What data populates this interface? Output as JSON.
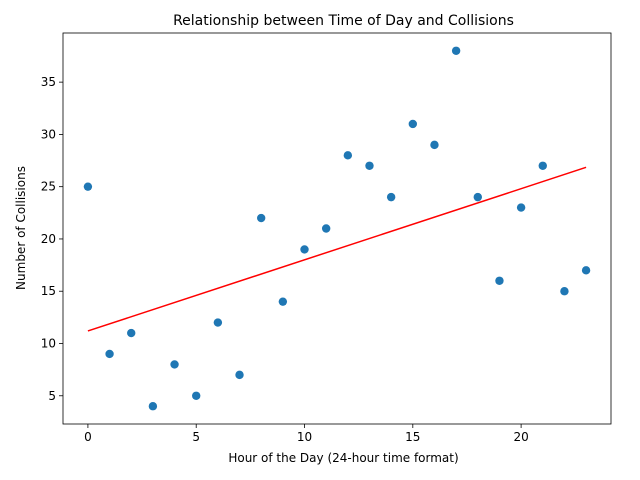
{
  "chart_data": {
    "type": "scatter",
    "title": "Relationship between Time of Day and Collisions",
    "xlabel": "Hour of the Day (24-hour time format)",
    "ylabel": "Number of Collisions",
    "xlim": [
      -1.15,
      24.15
    ],
    "ylim": [
      2.3,
      39.7
    ],
    "xticks": [
      0,
      5,
      10,
      15,
      20
    ],
    "yticks": [
      5,
      10,
      15,
      20,
      25,
      30,
      35
    ],
    "grid": false,
    "x": [
      0,
      1,
      2,
      3,
      4,
      5,
      6,
      7,
      8,
      9,
      10,
      11,
      12,
      13,
      14,
      15,
      16,
      17,
      18,
      19,
      20,
      21,
      22,
      23
    ],
    "y": [
      25,
      9,
      11,
      4,
      8,
      5,
      12,
      7,
      22,
      14,
      19,
      21,
      28,
      27,
      24,
      31,
      29,
      38,
      24,
      16,
      23,
      27,
      15,
      17
    ],
    "point_color": "#1f77b4",
    "trend_line": {
      "x": [
        0,
        23
      ],
      "y": [
        11.2,
        26.85
      ],
      "color": "#ff0000"
    }
  }
}
